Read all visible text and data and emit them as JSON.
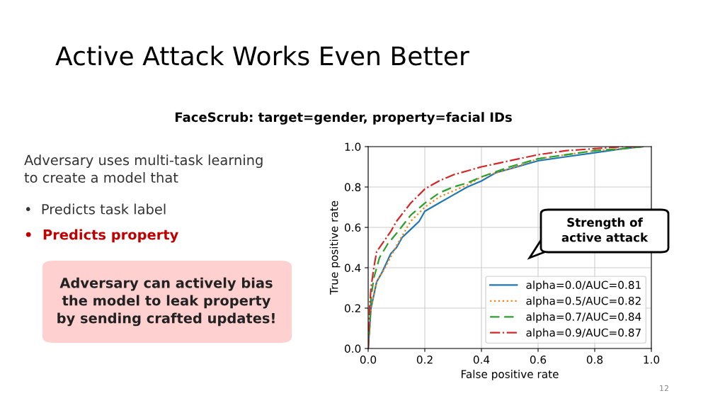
{
  "chart_data": {
    "type": "line",
    "title": "Active Attack Works Even Better",
    "subtitle": "FaceScrub: target=gender, property=facial IDs",
    "xlabel": "False positive rate",
    "ylabel": "True positive rate",
    "xlim": [
      0.0,
      1.0
    ],
    "ylim": [
      0.0,
      1.0
    ],
    "xticks": [
      {
        "value": 0,
        "label": "0.0"
      },
      0.2,
      0.4,
      0.6,
      0.8,
      {
        "value": 1,
        "label": "1.0"
      }
    ],
    "yticks": [
      {
        "value": 0,
        "label": "0.0"
      },
      0.2,
      0.4,
      0.6,
      0.8,
      {
        "value": 1,
        "label": "1.0"
      }
    ],
    "grid": true,
    "legend": "bottom right",
    "series": [
      {
        "name": "alpha=0.0/AUC=0.81",
        "color": "#1f77b4",
        "line_style": "solid",
        "x": [
          0,
          0.005,
          0.01,
          0.03,
          0.05,
          0.08,
          0.1,
          0.12,
          0.15,
          0.18,
          0.2,
          0.25,
          0.3,
          0.35,
          0.4,
          0.45,
          0.5,
          0.6,
          0.7,
          0.8,
          0.9,
          0.97
        ],
        "values": [
          0,
          0.1,
          0.2,
          0.33,
          0.38,
          0.47,
          0.5,
          0.55,
          0.59,
          0.63,
          0.68,
          0.72,
          0.76,
          0.8,
          0.83,
          0.87,
          0.89,
          0.93,
          0.95,
          0.97,
          0.99,
          1.0
        ]
      },
      {
        "name": "alpha=0.5/AUC=0.82",
        "color": "#ff7f0e",
        "line_style": "dotted",
        "x": [
          0,
          0.005,
          0.01,
          0.03,
          0.06,
          0.1,
          0.15,
          0.2,
          0.25,
          0.3,
          0.35,
          0.4,
          0.5,
          0.6,
          0.7,
          0.8,
          0.9,
          0.97
        ],
        "values": [
          0,
          0.12,
          0.2,
          0.33,
          0.4,
          0.51,
          0.63,
          0.7,
          0.75,
          0.78,
          0.81,
          0.85,
          0.89,
          0.94,
          0.96,
          0.98,
          0.99,
          1.0
        ]
      },
      {
        "name": "alpha=0.7/AUC=0.84",
        "color": "#2ca02c",
        "line_style": "dashed",
        "x": [
          0,
          0.005,
          0.01,
          0.02,
          0.04,
          0.07,
          0.1,
          0.15,
          0.2,
          0.25,
          0.3,
          0.35,
          0.4,
          0.5,
          0.6,
          0.7,
          0.8,
          0.9,
          0.97
        ],
        "values": [
          0,
          0.1,
          0.25,
          0.35,
          0.45,
          0.52,
          0.57,
          0.66,
          0.72,
          0.77,
          0.8,
          0.82,
          0.85,
          0.9,
          0.94,
          0.96,
          0.98,
          0.99,
          1.0
        ]
      },
      {
        "name": "alpha=0.9/AUC=0.87",
        "color": "#d62728",
        "line_style": "dashdot",
        "x": [
          0,
          0.005,
          0.01,
          0.02,
          0.03,
          0.05,
          0.08,
          0.1,
          0.15,
          0.2,
          0.25,
          0.3,
          0.35,
          0.4,
          0.5,
          0.6,
          0.7,
          0.8,
          0.9,
          0.97
        ],
        "values": [
          0,
          0.2,
          0.3,
          0.4,
          0.48,
          0.52,
          0.58,
          0.63,
          0.72,
          0.79,
          0.83,
          0.86,
          0.88,
          0.9,
          0.93,
          0.96,
          0.98,
          0.99,
          1.0,
          1.0
        ]
      }
    ],
    "annotations": [
      "Adversary uses multi-task learning\nto create a model that",
      "•  Predicts task label",
      "•  Predicts property",
      "Adversary can actively bias\nthe model to leak property\nby sending crafted updates!",
      "Strength of\nactive attack",
      "12"
    ]
  }
}
